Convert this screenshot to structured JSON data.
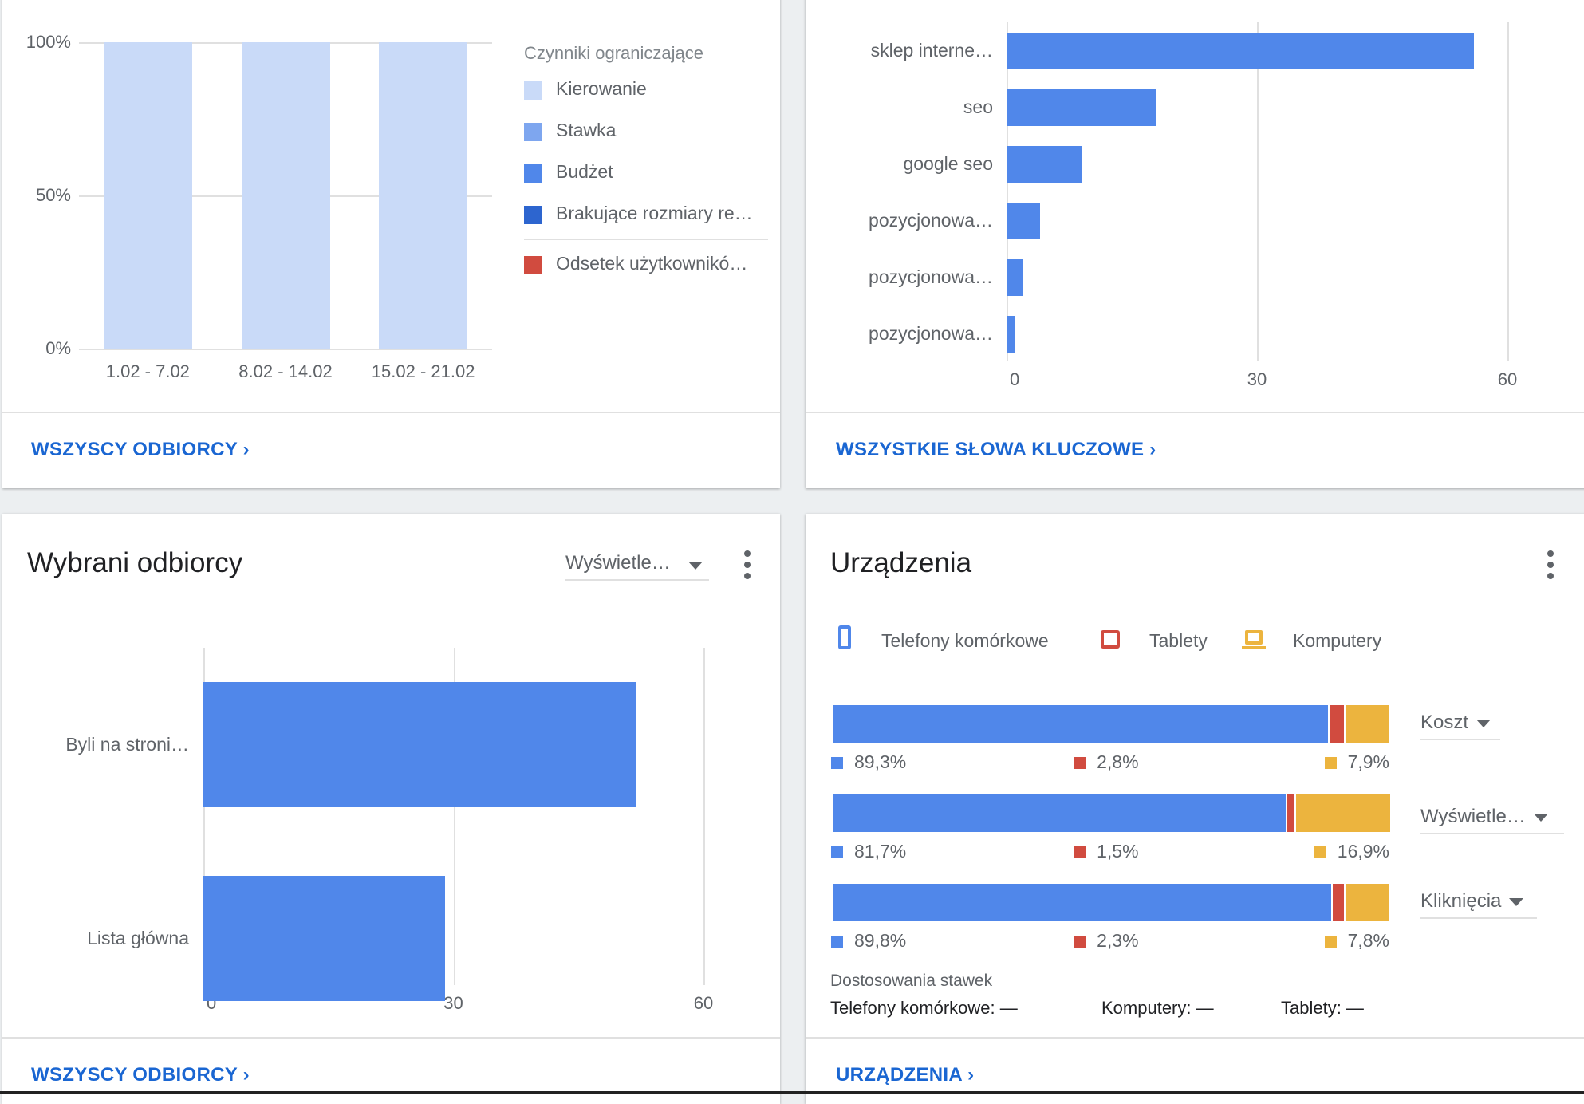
{
  "colors": {
    "blue": "#5087ea",
    "red": "#d14b3f",
    "yellow": "#ecb43e",
    "light": "#c9daf8",
    "stawka": "#7ea6ef",
    "dark": "#2d65cf",
    "link": "#1a66d2"
  },
  "card1": {
    "link": "WSZYSCY ODBIORCY",
    "legend_title": "Czynniki ograniczające",
    "legend": [
      "Kierowanie",
      "Stawka",
      "Budżet",
      "Brakujące rozmiary re…",
      "Odsetek użytkownikó…"
    ]
  },
  "card2": {
    "link": "WSZYSTKIE SŁOWA KLUCZOWE"
  },
  "card3": {
    "title": "Wybrani odbiorcy",
    "dropdown": "Wyświetle…",
    "link": "WSZYSCY ODBIORCY"
  },
  "card4": {
    "title": "Urządzenia",
    "legend": [
      "Telefony komórkowe",
      "Tablety",
      "Komputery"
    ],
    "rows": [
      {
        "metric": "Koszt",
        "values": [
          "89,3%",
          "2,8%",
          "7,9%"
        ],
        "fractions": [
          89.3,
          2.8,
          7.9
        ]
      },
      {
        "metric": "Wyświetle…",
        "values": [
          "81,7%",
          "1,5%",
          "16,9%"
        ],
        "fractions": [
          81.7,
          1.5,
          16.9
        ]
      },
      {
        "metric": "Kliknięcia",
        "values": [
          "89,8%",
          "2,3%",
          "7,8%"
        ],
        "fractions": [
          89.8,
          2.3,
          7.8
        ]
      }
    ],
    "adjust_title": "Dostosowania stawek",
    "adjust": [
      "Telefony komórkowe: —",
      "Komputery: —",
      "Tablety: —"
    ],
    "link": "URZĄDZENIA"
  },
  "chart_data": [
    {
      "type": "bar",
      "stacked": true,
      "categories": [
        "1.02 - 7.02",
        "8.02 - 14.02",
        "15.02 - 21.02"
      ],
      "yticks": [
        "0%",
        "50%",
        "100%"
      ],
      "ylim": [
        0,
        100
      ],
      "series": [
        {
          "name": "Kierowanie",
          "values": [
            100,
            100,
            100
          ]
        }
      ],
      "legend": "right"
    },
    {
      "type": "bar",
      "orientation": "horizontal",
      "categories": [
        "sklep interne…",
        "seo",
        "google seo",
        "pozycjonowa…",
        "pozycjonowa…",
        "pozycjonowa…"
      ],
      "values": [
        56,
        18,
        9,
        4,
        2,
        1
      ],
      "xticks": [
        "0",
        "30",
        "60"
      ],
      "xlim": [
        0,
        60
      ]
    },
    {
      "type": "bar",
      "orientation": "horizontal",
      "categories": [
        "Byli na stroni…",
        "Lista główna"
      ],
      "values": [
        52,
        29
      ],
      "xticks": [
        "0",
        "30",
        "60"
      ],
      "xlim": [
        0,
        60
      ]
    }
  ]
}
